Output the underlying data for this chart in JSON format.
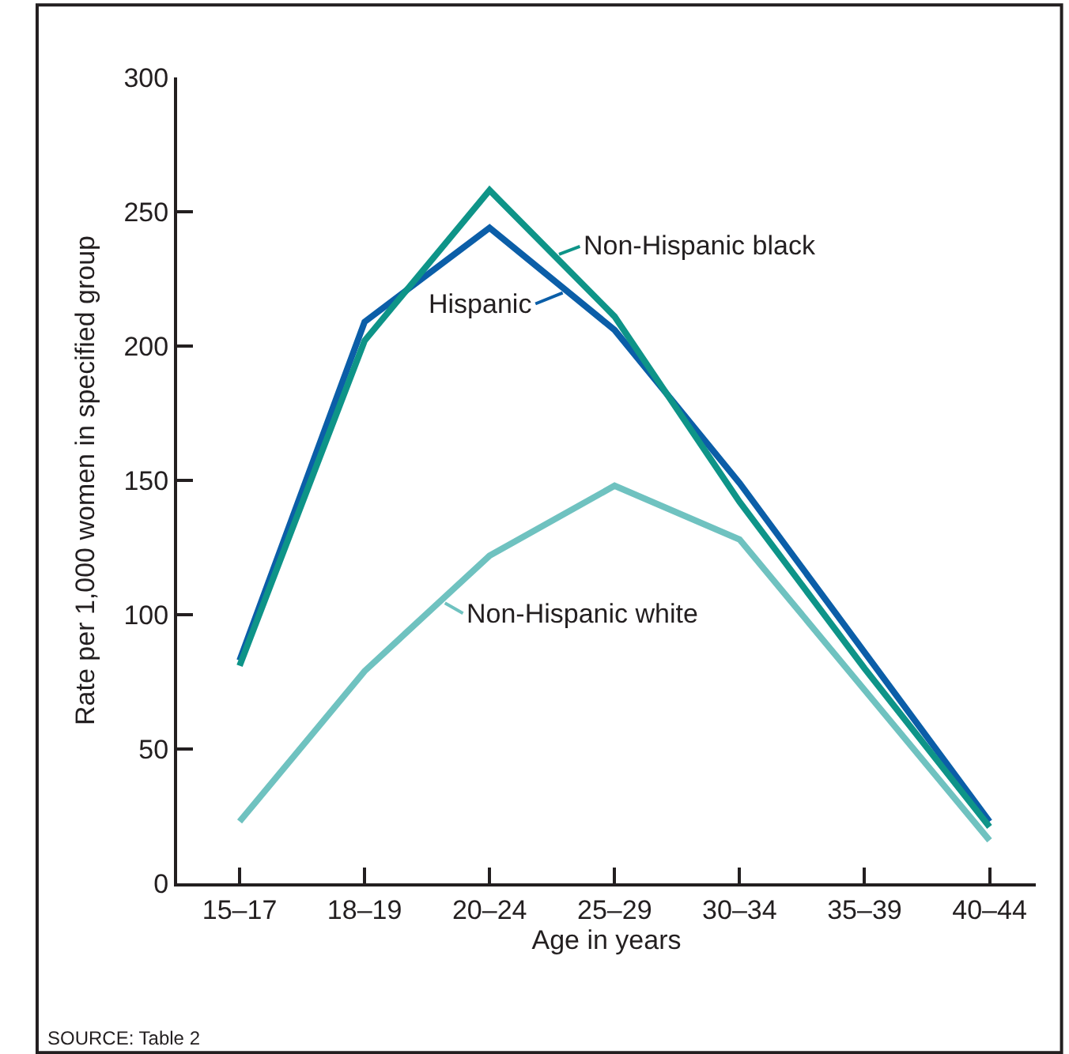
{
  "chart_data": {
    "type": "line",
    "xlabel": "Age in years",
    "ylabel": "Rate per 1,000 women in specified group",
    "categories": [
      "15–17",
      "18–19",
      "20–24",
      "25–29",
      "30–34",
      "35–39",
      "40–44"
    ],
    "series": [
      {
        "name": "Hispanic",
        "color": "#0b5ea8",
        "values": [
          83,
          209,
          244,
          206,
          149,
          86,
          23
        ]
      },
      {
        "name": "Non-Hispanic black",
        "color": "#0e9488",
        "values": [
          81,
          202,
          258,
          211,
          142,
          80,
          21
        ]
      },
      {
        "name": "Non-Hispanic white",
        "color": "#6fc2c0",
        "values": [
          23,
          79,
          122,
          148,
          128,
          72,
          16
        ]
      }
    ],
    "ylim": [
      0,
      300
    ],
    "yticks": [
      0,
      50,
      100,
      150,
      200,
      250,
      300
    ],
    "grid": false,
    "legend": "center",
    "marker": "none",
    "line_style": "solid",
    "annotations": [
      "SOURCE: Table 2"
    ]
  }
}
